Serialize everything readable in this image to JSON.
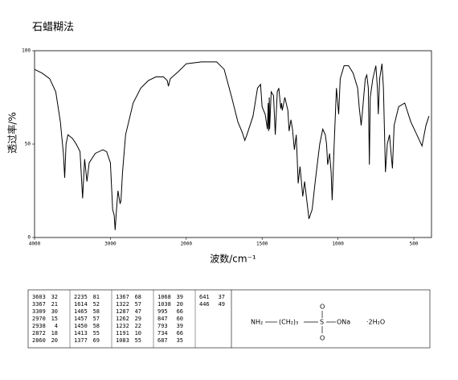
{
  "chart_data": {
    "type": "line",
    "title": "石蜡糊法",
    "x_label": "波数/cm⁻¹",
    "y_label": "透过率/%",
    "xlim": [
      4000,
      400
    ],
    "xticks": [
      4000,
      3000,
      2000,
      1500,
      1000,
      500
    ],
    "ylim": [
      0,
      100
    ],
    "yticks": [
      0,
      50,
      100
    ],
    "color": "#000000",
    "x": [
      4000,
      3900,
      3800,
      3720,
      3660,
      3620,
      3603,
      3585,
      3560,
      3500,
      3450,
      3400,
      3367,
      3340,
      3309,
      3280,
      3200,
      3100,
      3050,
      3000,
      2970,
      2950,
      2938,
      2920,
      2900,
      2880,
      2872,
      2860,
      2840,
      2800,
      2700,
      2600,
      2500,
      2400,
      2300,
      2250,
      2235,
      2210,
      2100,
      2000,
      1900,
      1800,
      1750,
      1700,
      1660,
      1630,
      1614,
      1600,
      1560,
      1530,
      1510,
      1500,
      1480,
      1465,
      1460,
      1457,
      1453,
      1450,
      1440,
      1425,
      1413,
      1400,
      1390,
      1377,
      1372,
      1367,
      1350,
      1330,
      1322,
      1310,
      1300,
      1287,
      1275,
      1262,
      1250,
      1232,
      1220,
      1191,
      1170,
      1150,
      1120,
      1100,
      1083,
      1075,
      1068,
      1055,
      1045,
      1038,
      1025,
      1010,
      995,
      985,
      960,
      930,
      900,
      870,
      860,
      847,
      838,
      820,
      810,
      800,
      793,
      787,
      770,
      750,
      740,
      734,
      725,
      710,
      700,
      687,
      675,
      660,
      650,
      641,
      630,
      600,
      560,
      520,
      480,
      446,
      420,
      400
    ],
    "values": [
      90,
      88,
      85,
      78,
      62,
      45,
      32,
      50,
      55,
      53,
      50,
      46,
      21,
      42,
      30,
      40,
      45,
      47,
      46,
      40,
      15,
      12,
      4,
      15,
      25,
      20,
      18,
      20,
      35,
      55,
      72,
      80,
      84,
      86,
      86,
      84,
      81,
      85,
      89,
      93,
      94,
      94,
      90,
      75,
      62,
      56,
      52,
      55,
      65,
      80,
      82,
      70,
      66,
      58,
      72,
      57,
      75,
      58,
      78,
      76,
      55,
      78,
      80,
      69,
      72,
      68,
      75,
      68,
      57,
      63,
      58,
      47,
      55,
      29,
      38,
      22,
      30,
      10,
      15,
      30,
      50,
      58,
      55,
      50,
      39,
      45,
      35,
      20,
      50,
      80,
      66,
      85,
      92,
      92,
      88,
      80,
      70,
      60,
      68,
      85,
      87,
      80,
      39,
      75,
      85,
      92,
      80,
      66,
      85,
      93,
      80,
      35,
      50,
      55,
      45,
      37,
      60,
      70,
      72,
      62,
      55,
      49,
      60,
      65
    ]
  },
  "peak_table": [
    [
      [
        3603,
        32
      ],
      [
        3367,
        21
      ],
      [
        3309,
        30
      ],
      [
        2970,
        15
      ],
      [
        2938,
        4
      ],
      [
        2872,
        18
      ],
      [
        2860,
        20
      ]
    ],
    [
      [
        2235,
        81
      ],
      [
        1614,
        52
      ],
      [
        1465,
        58
      ],
      [
        1457,
        57
      ],
      [
        1450,
        58
      ],
      [
        1413,
        55
      ],
      [
        1377,
        69
      ]
    ],
    [
      [
        1367,
        68
      ],
      [
        1322,
        57
      ],
      [
        1287,
        47
      ],
      [
        1262,
        29
      ],
      [
        1232,
        22
      ],
      [
        1191,
        10
      ],
      [
        1083,
        55
      ]
    ],
    [
      [
        1068,
        39
      ],
      [
        1038,
        20
      ],
      [
        995,
        66
      ],
      [
        847,
        60
      ],
      [
        793,
        39
      ],
      [
        734,
        66
      ],
      [
        687,
        35
      ]
    ],
    [
      [
        641,
        37
      ],
      [
        446,
        49
      ]
    ]
  ],
  "structure": {
    "amine": "NH₂",
    "chain": "(CH₂)₃",
    "sulfur": "S",
    "oxygen_top": "O",
    "oxygen_bottom": "O",
    "salt": "ONa",
    "hydrate": "·2H₂O"
  }
}
